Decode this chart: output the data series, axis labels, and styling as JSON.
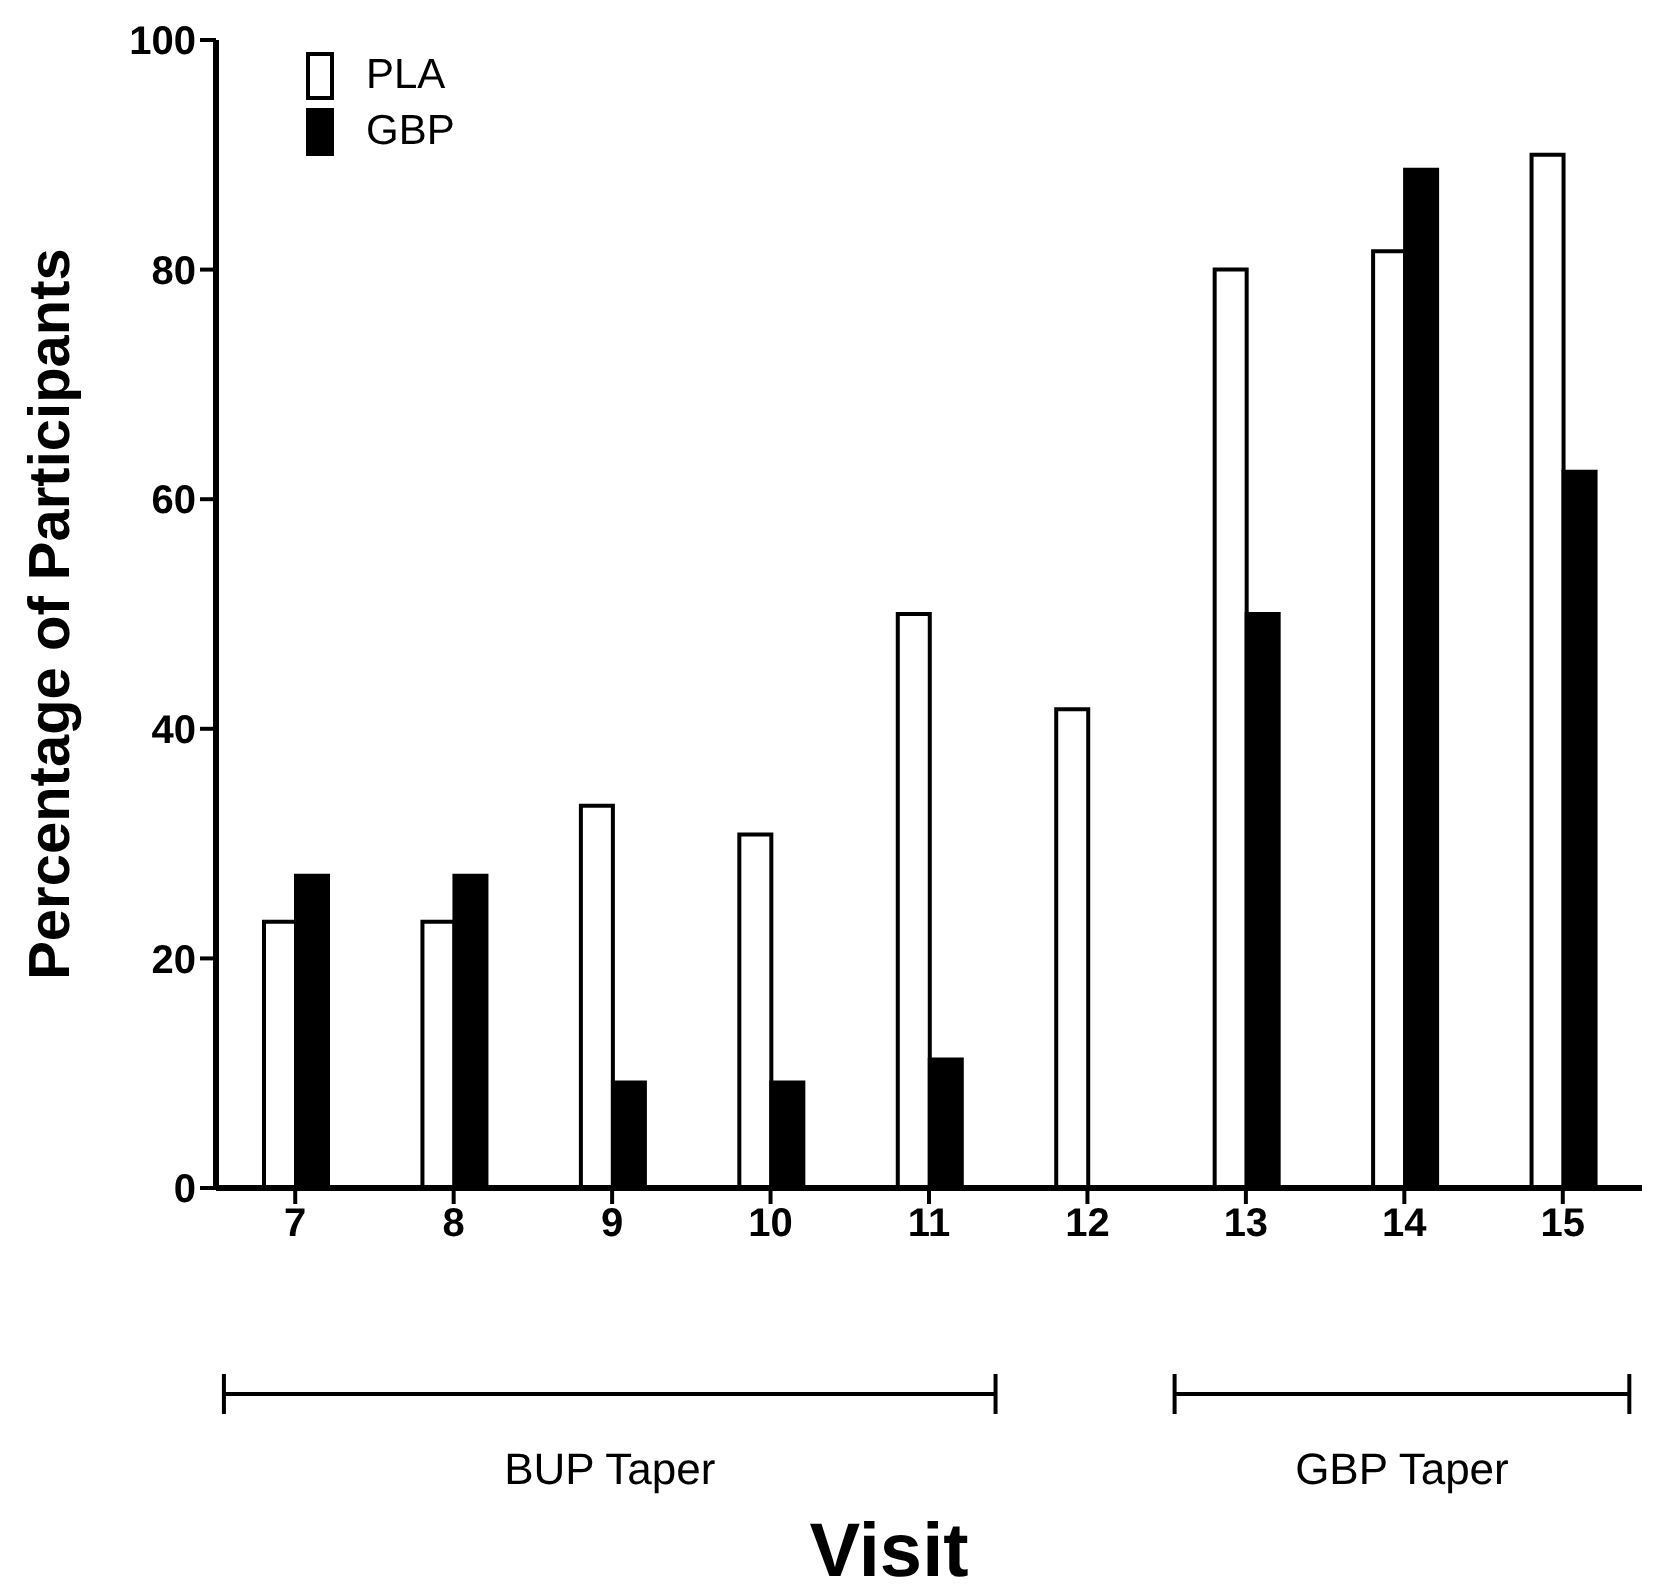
{
  "chart_data": {
    "type": "bar",
    "xlabel": "Visit",
    "ylabel": "Percentage of Participants",
    "categories": [
      "7",
      "8",
      "9",
      "10",
      "11",
      "12",
      "13",
      "14",
      "15"
    ],
    "series": [
      {
        "name": "PLA",
        "color": "#ffffff",
        "values": [
          23.2,
          23.2,
          33.3,
          30.8,
          50,
          41.7,
          80,
          81.6,
          90
        ]
      },
      {
        "name": "GBP",
        "color": "#000000",
        "values": [
          27.2,
          27.2,
          9.2,
          9.2,
          11.2,
          0,
          50,
          88.7,
          62.4
        ]
      }
    ],
    "ylim": [
      0,
      100
    ],
    "yticks": [
      0,
      20,
      40,
      60,
      80,
      100
    ],
    "grid": false,
    "legend": "top left",
    "annotations": [
      "BUP Taper",
      "GBP Taper"
    ]
  }
}
